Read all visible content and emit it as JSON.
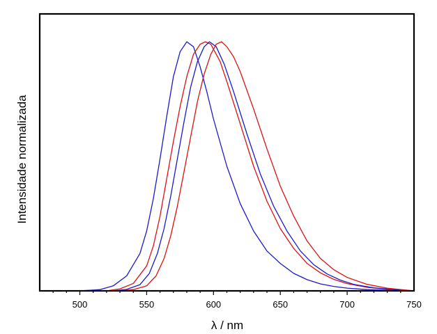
{
  "chart_data": {
    "type": "line",
    "title": "",
    "xlabel": "λ / nm",
    "ylabel": "Intensidade normalizada",
    "xlim": [
      470,
      750
    ],
    "ylim": [
      0,
      1.05
    ],
    "x_ticks": [
      500,
      550,
      600,
      650,
      700,
      750
    ],
    "x_tick_labels": [
      "500",
      "550",
      "600",
      "650",
      "700",
      "750"
    ],
    "y_ticks": [],
    "grid": false,
    "legend": "none",
    "series": [
      {
        "color": "#1a1acc",
        "points": [
          [
            470,
            0
          ],
          [
            500,
            0
          ],
          [
            515,
            0.005
          ],
          [
            525,
            0.02
          ],
          [
            535,
            0.06
          ],
          [
            545,
            0.15
          ],
          [
            550,
            0.24
          ],
          [
            555,
            0.37
          ],
          [
            560,
            0.53
          ],
          [
            565,
            0.7
          ],
          [
            570,
            0.86
          ],
          [
            575,
            0.96
          ],
          [
            580,
            1.0
          ],
          [
            585,
            0.98
          ],
          [
            590,
            0.9
          ],
          [
            595,
            0.8
          ],
          [
            600,
            0.69
          ],
          [
            610,
            0.5
          ],
          [
            620,
            0.35
          ],
          [
            630,
            0.24
          ],
          [
            640,
            0.16
          ],
          [
            650,
            0.11
          ],
          [
            660,
            0.07
          ],
          [
            670,
            0.045
          ],
          [
            680,
            0.028
          ],
          [
            690,
            0.018
          ],
          [
            700,
            0.011
          ],
          [
            715,
            0.005
          ],
          [
            730,
            0.002
          ],
          [
            750,
            0
          ]
        ]
      },
      {
        "color": "#dd1111",
        "points": [
          [
            470,
            0
          ],
          [
            520,
            0
          ],
          [
            530,
            0.008
          ],
          [
            540,
            0.03
          ],
          [
            550,
            0.1
          ],
          [
            555,
            0.18
          ],
          [
            560,
            0.3
          ],
          [
            565,
            0.45
          ],
          [
            570,
            0.6
          ],
          [
            575,
            0.74
          ],
          [
            580,
            0.86
          ],
          [
            585,
            0.95
          ],
          [
            590,
            0.99
          ],
          [
            594,
            1.0
          ],
          [
            598,
            0.99
          ],
          [
            605,
            0.92
          ],
          [
            610,
            0.84
          ],
          [
            620,
            0.67
          ],
          [
            630,
            0.5
          ],
          [
            640,
            0.36
          ],
          [
            650,
            0.25
          ],
          [
            660,
            0.17
          ],
          [
            670,
            0.11
          ],
          [
            680,
            0.072
          ],
          [
            690,
            0.046
          ],
          [
            700,
            0.029
          ],
          [
            715,
            0.014
          ],
          [
            730,
            0.006
          ],
          [
            750,
            0
          ]
        ]
      },
      {
        "color": "#1a1acc",
        "points": [
          [
            470,
            0
          ],
          [
            525,
            0
          ],
          [
            535,
            0.006
          ],
          [
            545,
            0.025
          ],
          [
            552,
            0.07
          ],
          [
            558,
            0.15
          ],
          [
            563,
            0.25
          ],
          [
            568,
            0.38
          ],
          [
            573,
            0.53
          ],
          [
            578,
            0.68
          ],
          [
            583,
            0.82
          ],
          [
            588,
            0.92
          ],
          [
            593,
            0.98
          ],
          [
            597,
            1.0
          ],
          [
            602,
            0.98
          ],
          [
            608,
            0.91
          ],
          [
            615,
            0.8
          ],
          [
            625,
            0.63
          ],
          [
            635,
            0.47
          ],
          [
            645,
            0.34
          ],
          [
            655,
            0.24
          ],
          [
            665,
            0.16
          ],
          [
            675,
            0.105
          ],
          [
            685,
            0.068
          ],
          [
            695,
            0.043
          ],
          [
            705,
            0.026
          ],
          [
            720,
            0.012
          ],
          [
            735,
            0.005
          ],
          [
            750,
            0
          ]
        ]
      },
      {
        "color": "#dd1111",
        "points": [
          [
            470,
            0
          ],
          [
            530,
            0
          ],
          [
            540,
            0.005
          ],
          [
            550,
            0.02
          ],
          [
            557,
            0.06
          ],
          [
            563,
            0.13
          ],
          [
            568,
            0.22
          ],
          [
            573,
            0.34
          ],
          [
            578,
            0.48
          ],
          [
            583,
            0.62
          ],
          [
            588,
            0.76
          ],
          [
            593,
            0.87
          ],
          [
            598,
            0.95
          ],
          [
            602,
            0.99
          ],
          [
            606,
            1.0
          ],
          [
            610,
            0.98
          ],
          [
            615,
            0.94
          ],
          [
            620,
            0.88
          ],
          [
            630,
            0.73
          ],
          [
            640,
            0.57
          ],
          [
            650,
            0.42
          ],
          [
            660,
            0.3
          ],
          [
            670,
            0.2
          ],
          [
            680,
            0.13
          ],
          [
            690,
            0.085
          ],
          [
            700,
            0.054
          ],
          [
            715,
            0.026
          ],
          [
            730,
            0.011
          ],
          [
            750,
            0
          ]
        ]
      }
    ]
  }
}
